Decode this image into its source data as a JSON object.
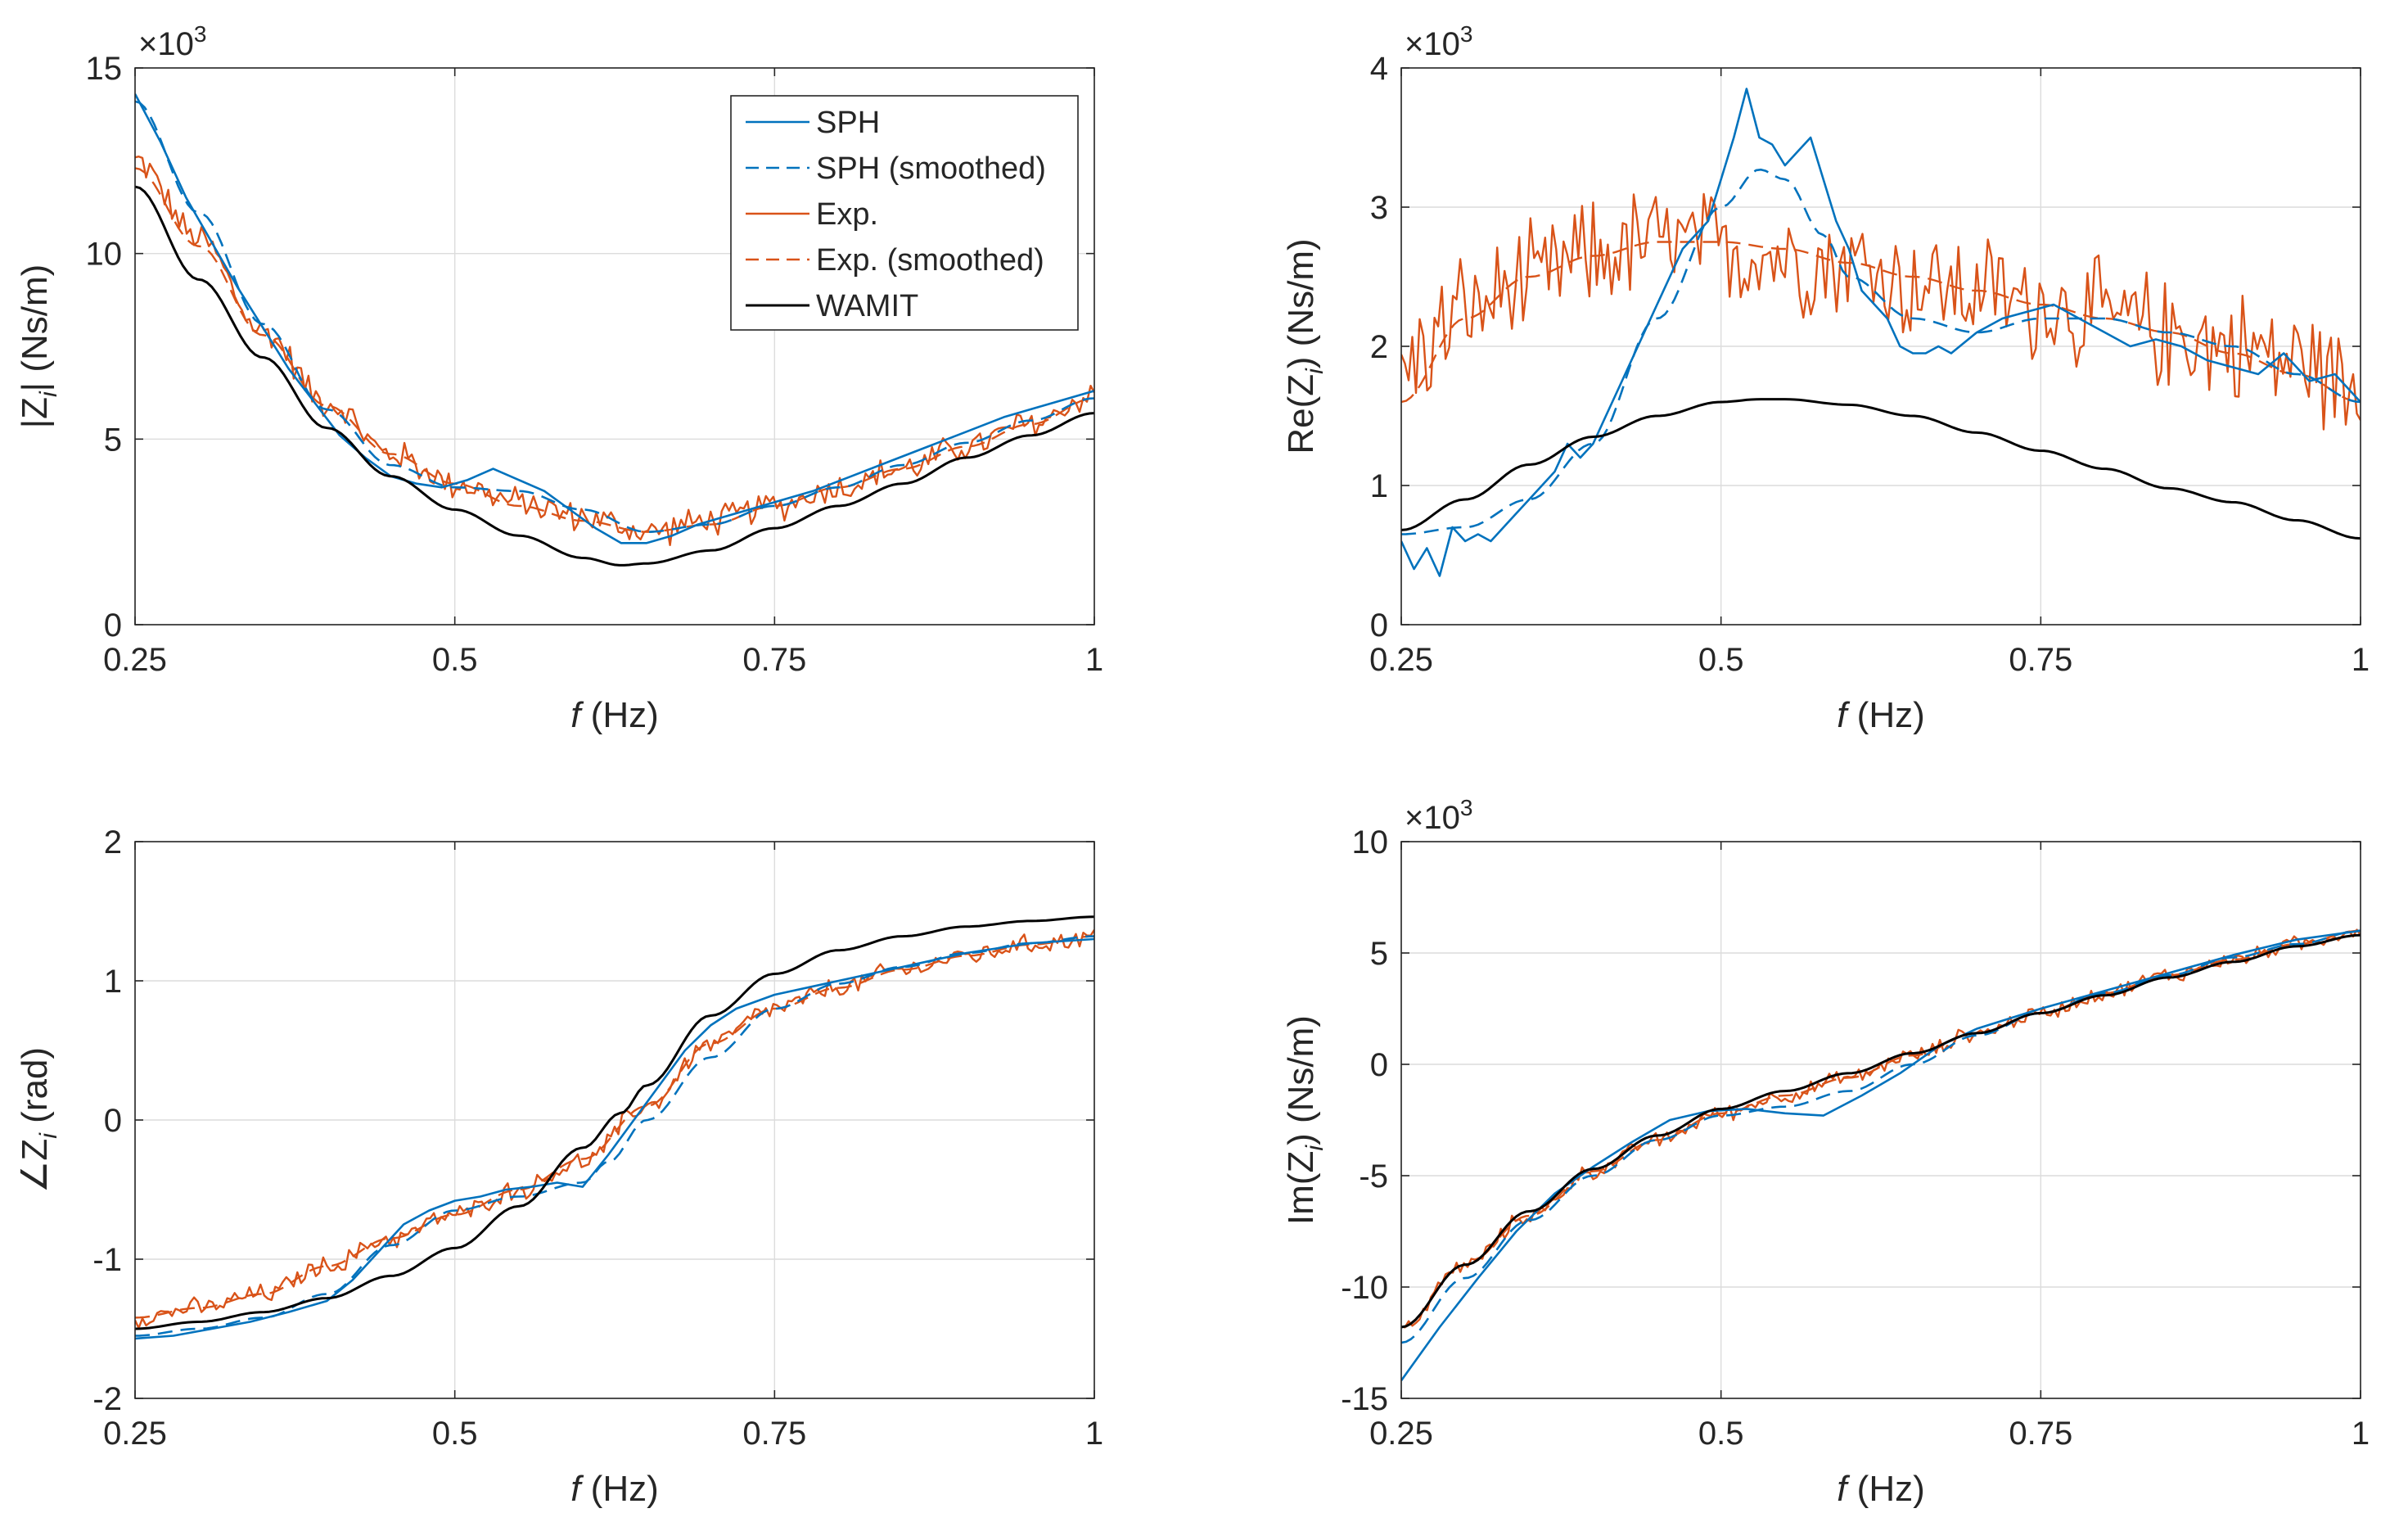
{
  "x_label_prefix": "f",
  "x_label_unit": " (Hz)",
  "exponent_base": "×10",
  "exponent_power": "3",
  "legend": [
    {
      "label": "SPH",
      "color": "#0072BD",
      "dash": "solid"
    },
    {
      "label": "SPH (smoothed)",
      "color": "#0072BD",
      "dash": "dashed"
    },
    {
      "label": "Exp.",
      "color": "#D95319",
      "dash": "solid"
    },
    {
      "label": "Exp. (smoothed)",
      "color": "#D95319",
      "dash": "dashed"
    },
    {
      "label": "WAMIT",
      "color": "#000000",
      "dash": "solid"
    }
  ],
  "colors": {
    "sph": "#0072BD",
    "exp": "#D95319",
    "wamit": "#000000",
    "grid": "#dcdcdc",
    "axis": "#262626"
  },
  "chart_data": [
    {
      "id": "abs",
      "type": "line",
      "ylabel_main": "|Z",
      "ylabel_sub": "i",
      "ylabel_tail": "|   (Ns/m)",
      "xlim": [
        0.25,
        1
      ],
      "ylim": [
        0,
        15
      ],
      "xticks": [
        0.25,
        0.5,
        0.75,
        1
      ],
      "xtick_labels": [
        "0.25",
        "0.5",
        "0.75",
        "1"
      ],
      "yticks": [
        0,
        5,
        10,
        15
      ],
      "ytick_labels": [
        "0",
        "5",
        "10",
        "15"
      ],
      "exponent": true,
      "legend_position": "top-right",
      "series": [
        {
          "name": "SPH",
          "x": [
            0.25,
            0.27,
            0.29,
            0.31,
            0.33,
            0.35,
            0.37,
            0.39,
            0.41,
            0.43,
            0.45,
            0.47,
            0.49,
            0.51,
            0.53,
            0.55,
            0.57,
            0.59,
            0.61,
            0.63,
            0.65,
            0.67,
            0.69,
            0.71,
            0.73,
            0.75,
            0.78,
            0.81,
            0.84,
            0.87,
            0.9,
            0.93,
            0.96,
            1.0
          ],
          "y": [
            14.3,
            13.0,
            11.5,
            10.3,
            9.1,
            8.0,
            6.9,
            6.0,
            5.1,
            4.5,
            4.0,
            3.8,
            3.7,
            3.9,
            4.2,
            3.9,
            3.6,
            3.1,
            2.6,
            2.2,
            2.2,
            2.4,
            2.7,
            2.9,
            3.1,
            3.3,
            3.6,
            4.0,
            4.4,
            4.8,
            5.2,
            5.6,
            5.9,
            6.3
          ]
        },
        {
          "name": "SPH (smoothed)",
          "x": [
            0.25,
            0.3,
            0.35,
            0.4,
            0.45,
            0.5,
            0.55,
            0.6,
            0.65,
            0.7,
            0.75,
            0.8,
            0.85,
            0.9,
            0.95,
            1.0
          ],
          "y": [
            14.1,
            11.1,
            8.1,
            5.8,
            4.3,
            3.7,
            3.6,
            3.1,
            2.5,
            2.7,
            3.2,
            3.7,
            4.3,
            4.9,
            5.5,
            6.1
          ]
        },
        {
          "name": "Exp.",
          "x": [
            0.25,
            0.3,
            0.35,
            0.4,
            0.45,
            0.5,
            0.55,
            0.6,
            0.65,
            0.7,
            0.75,
            0.8,
            0.85,
            0.9,
            0.95,
            1.0
          ],
          "y": [
            12.5,
            10.4,
            7.9,
            6.0,
            4.6,
            3.8,
            3.3,
            2.9,
            2.5,
            2.8,
            3.2,
            3.7,
            4.2,
            4.8,
            5.4,
            6.2
          ],
          "noise": 0.35
        },
        {
          "name": "Exp. (smoothed)",
          "x": [
            0.25,
            0.3,
            0.35,
            0.4,
            0.45,
            0.5,
            0.55,
            0.6,
            0.65,
            0.7,
            0.75,
            0.8,
            0.85,
            0.9,
            0.95,
            1.0
          ],
          "y": [
            12.3,
            10.2,
            7.8,
            5.9,
            4.6,
            3.8,
            3.2,
            2.8,
            2.5,
            2.7,
            3.2,
            3.7,
            4.2,
            4.8,
            5.4,
            6.1
          ]
        },
        {
          "name": "WAMIT",
          "x": [
            0.25,
            0.3,
            0.35,
            0.4,
            0.45,
            0.5,
            0.55,
            0.6,
            0.63,
            0.65,
            0.7,
            0.75,
            0.8,
            0.85,
            0.9,
            0.95,
            1.0
          ],
          "y": [
            11.8,
            9.3,
            7.2,
            5.3,
            4.0,
            3.1,
            2.4,
            1.8,
            1.6,
            1.65,
            2.0,
            2.6,
            3.2,
            3.8,
            4.5,
            5.1,
            5.7
          ]
        }
      ]
    },
    {
      "id": "re",
      "type": "line",
      "ylabel_main": "Re(Z",
      "ylabel_sub": "i",
      "ylabel_tail": ")   (Ns/m)",
      "xlim": [
        0.25,
        1
      ],
      "ylim": [
        0,
        4
      ],
      "xticks": [
        0.25,
        0.5,
        0.75,
        1
      ],
      "xtick_labels": [
        "0.25",
        "0.5",
        "0.75",
        "1"
      ],
      "yticks": [
        0,
        1,
        2,
        3,
        4
      ],
      "ytick_labels": [
        "0",
        "1",
        "2",
        "3",
        "4"
      ],
      "exponent": true,
      "series": [
        {
          "name": "SPH",
          "x": [
            0.25,
            0.26,
            0.27,
            0.28,
            0.29,
            0.3,
            0.31,
            0.32,
            0.33,
            0.34,
            0.35,
            0.36,
            0.37,
            0.38,
            0.39,
            0.4,
            0.41,
            0.42,
            0.43,
            0.44,
            0.45,
            0.46,
            0.47,
            0.48,
            0.49,
            0.5,
            0.51,
            0.52,
            0.53,
            0.54,
            0.55,
            0.56,
            0.57,
            0.58,
            0.59,
            0.6,
            0.61,
            0.62,
            0.63,
            0.64,
            0.65,
            0.66,
            0.67,
            0.68,
            0.7,
            0.72,
            0.74,
            0.76,
            0.78,
            0.8,
            0.82,
            0.84,
            0.86,
            0.88,
            0.9,
            0.92,
            0.94,
            0.96,
            0.98,
            1.0
          ],
          "y": [
            0.6,
            0.4,
            0.55,
            0.35,
            0.7,
            0.6,
            0.65,
            0.6,
            0.7,
            0.8,
            0.9,
            1.0,
            1.1,
            1.3,
            1.2,
            1.3,
            1.5,
            1.7,
            1.9,
            2.1,
            2.3,
            2.5,
            2.7,
            2.8,
            2.9,
            3.2,
            3.5,
            3.85,
            3.5,
            3.45,
            3.3,
            3.4,
            3.5,
            3.2,
            2.9,
            2.7,
            2.4,
            2.3,
            2.2,
            2.0,
            1.95,
            1.95,
            2.0,
            1.95,
            2.1,
            2.2,
            2.25,
            2.3,
            2.2,
            2.1,
            2.0,
            2.05,
            2.0,
            1.9,
            1.85,
            1.8,
            1.95,
            1.75,
            1.8,
            1.6
          ]
        },
        {
          "name": "SPH (smoothed)",
          "x": [
            0.25,
            0.3,
            0.35,
            0.4,
            0.45,
            0.5,
            0.53,
            0.55,
            0.58,
            0.6,
            0.65,
            0.7,
            0.75,
            0.8,
            0.85,
            0.9,
            0.95,
            1.0
          ],
          "y": [
            0.65,
            0.7,
            0.9,
            1.3,
            2.2,
            3.0,
            3.27,
            3.2,
            2.8,
            2.5,
            2.2,
            2.1,
            2.2,
            2.2,
            2.1,
            2.0,
            1.8,
            1.6
          ]
        },
        {
          "name": "Exp.",
          "x": [
            0.25,
            0.3,
            0.35,
            0.4,
            0.45,
            0.5,
            0.55,
            0.6,
            0.65,
            0.7,
            0.75,
            0.8,
            0.85,
            0.9,
            0.95,
            1.0
          ],
          "y": [
            1.85,
            2.25,
            2.45,
            2.65,
            2.75,
            2.7,
            2.65,
            2.6,
            2.45,
            2.4,
            2.3,
            2.2,
            2.1,
            2.0,
            1.9,
            1.7
          ],
          "noise": 0.35
        },
        {
          "name": "Exp. (smoothed)",
          "x": [
            0.25,
            0.3,
            0.35,
            0.4,
            0.45,
            0.5,
            0.55,
            0.6,
            0.65,
            0.7,
            0.75,
            0.8,
            0.85,
            0.9,
            0.95,
            1.0
          ],
          "y": [
            1.6,
            2.2,
            2.5,
            2.65,
            2.75,
            2.75,
            2.7,
            2.6,
            2.5,
            2.4,
            2.3,
            2.2,
            2.1,
            1.95,
            1.8,
            1.6
          ]
        },
        {
          "name": "WAMIT",
          "x": [
            0.25,
            0.3,
            0.35,
            0.4,
            0.45,
            0.5,
            0.53,
            0.55,
            0.6,
            0.65,
            0.7,
            0.75,
            0.8,
            0.85,
            0.9,
            0.95,
            1.0
          ],
          "y": [
            0.68,
            0.9,
            1.15,
            1.35,
            1.5,
            1.6,
            1.62,
            1.62,
            1.58,
            1.5,
            1.38,
            1.25,
            1.12,
            0.98,
            0.88,
            0.75,
            0.62
          ]
        }
      ]
    },
    {
      "id": "phase",
      "type": "line",
      "ylabel_main": "∠Z",
      "ylabel_sub": "i",
      "ylabel_tail": "   (rad)",
      "xlim": [
        0.25,
        1
      ],
      "ylim": [
        -2,
        2
      ],
      "xticks": [
        0.25,
        0.5,
        0.75,
        1
      ],
      "xtick_labels": [
        "0.25",
        "0.5",
        "0.75",
        "1"
      ],
      "yticks": [
        -2,
        -1,
        0,
        1,
        2
      ],
      "ytick_labels": [
        "-2",
        "-1",
        "0",
        "1",
        "2"
      ],
      "exponent": false,
      "series": [
        {
          "name": "SPH",
          "x": [
            0.25,
            0.28,
            0.31,
            0.34,
            0.37,
            0.4,
            0.42,
            0.44,
            0.46,
            0.48,
            0.5,
            0.52,
            0.54,
            0.56,
            0.58,
            0.6,
            0.62,
            0.64,
            0.66,
            0.68,
            0.7,
            0.72,
            0.75,
            0.8,
            0.85,
            0.9,
            0.95,
            1.0
          ],
          "y": [
            -1.57,
            -1.55,
            -1.5,
            -1.45,
            -1.38,
            -1.3,
            -1.15,
            -0.95,
            -0.75,
            -0.65,
            -0.58,
            -0.55,
            -0.5,
            -0.48,
            -0.45,
            -0.48,
            -0.25,
            0.0,
            0.25,
            0.5,
            0.68,
            0.8,
            0.9,
            1.0,
            1.1,
            1.2,
            1.27,
            1.3
          ]
        },
        {
          "name": "SPH (smoothed)",
          "x": [
            0.25,
            0.3,
            0.35,
            0.4,
            0.45,
            0.5,
            0.55,
            0.6,
            0.62,
            0.65,
            0.7,
            0.75,
            0.8,
            0.85,
            0.9,
            0.95,
            1.0
          ],
          "y": [
            -1.55,
            -1.5,
            -1.42,
            -1.25,
            -0.9,
            -0.65,
            -0.55,
            -0.45,
            -0.3,
            0.0,
            0.45,
            0.8,
            0.98,
            1.1,
            1.2,
            1.27,
            1.32
          ]
        },
        {
          "name": "Exp.",
          "x": [
            0.25,
            0.3,
            0.35,
            0.4,
            0.45,
            0.5,
            0.55,
            0.6,
            0.65,
            0.7,
            0.75,
            0.8,
            0.85,
            0.9,
            0.95,
            1.0
          ],
          "y": [
            -1.42,
            -1.35,
            -1.25,
            -1.05,
            -0.85,
            -0.68,
            -0.5,
            -0.3,
            0.1,
            0.55,
            0.8,
            0.95,
            1.08,
            1.18,
            1.26,
            1.32
          ],
          "noise": 0.06
        },
        {
          "name": "Exp. (smoothed)",
          "x": [
            0.25,
            0.3,
            0.35,
            0.4,
            0.45,
            0.5,
            0.55,
            0.6,
            0.65,
            0.7,
            0.75,
            0.8,
            0.85,
            0.9,
            0.95,
            1.0
          ],
          "y": [
            -1.42,
            -1.35,
            -1.25,
            -1.05,
            -0.85,
            -0.68,
            -0.5,
            -0.28,
            0.1,
            0.55,
            0.8,
            0.95,
            1.08,
            1.18,
            1.26,
            1.32
          ]
        },
        {
          "name": "WAMIT",
          "x": [
            0.25,
            0.3,
            0.35,
            0.4,
            0.45,
            0.5,
            0.55,
            0.6,
            0.63,
            0.65,
            0.7,
            0.75,
            0.8,
            0.85,
            0.9,
            0.95,
            1.0
          ],
          "y": [
            -1.5,
            -1.45,
            -1.38,
            -1.28,
            -1.12,
            -0.92,
            -0.62,
            -0.2,
            0.05,
            0.25,
            0.75,
            1.05,
            1.22,
            1.32,
            1.39,
            1.43,
            1.46
          ]
        }
      ]
    },
    {
      "id": "im",
      "type": "line",
      "ylabel_main": "Im(Z",
      "ylabel_sub": "i",
      "ylabel_tail": ")   (Ns/m)",
      "xlim": [
        0.25,
        1
      ],
      "ylim": [
        -15,
        10
      ],
      "xticks": [
        0.25,
        0.5,
        0.75,
        1
      ],
      "xtick_labels": [
        "0.25",
        "0.5",
        "0.75",
        "1"
      ],
      "yticks": [
        -15,
        -10,
        -5,
        0,
        5,
        10
      ],
      "ytick_labels": [
        "-15",
        "-10",
        "-5",
        "0",
        "5",
        "10"
      ],
      "exponent": true,
      "series": [
        {
          "name": "SPH",
          "x": [
            0.25,
            0.28,
            0.31,
            0.34,
            0.37,
            0.4,
            0.43,
            0.46,
            0.49,
            0.52,
            0.55,
            0.58,
            0.61,
            0.64,
            0.67,
            0.7,
            0.75,
            0.8,
            0.85,
            0.9,
            0.95,
            1.0
          ],
          "y": [
            -14.2,
            -11.8,
            -9.6,
            -7.5,
            -5.8,
            -4.6,
            -3.5,
            -2.5,
            -2.1,
            -2.0,
            -2.2,
            -2.3,
            -1.4,
            -0.4,
            0.8,
            1.6,
            2.5,
            3.3,
            4.1,
            4.9,
            5.6,
            6.0
          ]
        },
        {
          "name": "SPH (smoothed)",
          "x": [
            0.25,
            0.3,
            0.35,
            0.4,
            0.45,
            0.5,
            0.55,
            0.6,
            0.65,
            0.7,
            0.75,
            0.8,
            0.85,
            0.9,
            0.95,
            1.0
          ],
          "y": [
            -12.5,
            -9.6,
            -7.0,
            -5.0,
            -3.4,
            -2.3,
            -1.9,
            -1.2,
            0.0,
            1.3,
            2.3,
            3.2,
            4.0,
            4.8,
            5.4,
            6.0
          ]
        },
        {
          "name": "Exp.",
          "x": [
            0.25,
            0.3,
            0.35,
            0.4,
            0.45,
            0.5,
            0.55,
            0.6,
            0.65,
            0.7,
            0.75,
            0.8,
            0.85,
            0.9,
            0.95,
            1.0
          ],
          "y": [
            -11.8,
            -9.0,
            -6.8,
            -4.8,
            -3.4,
            -2.2,
            -1.4,
            -0.6,
            0.4,
            1.4,
            2.3,
            3.2,
            4.0,
            4.7,
            5.4,
            6.0
          ],
          "noise": 0.3
        },
        {
          "name": "Exp. (smoothed)",
          "x": [
            0.25,
            0.3,
            0.35,
            0.4,
            0.45,
            0.5,
            0.55,
            0.6,
            0.65,
            0.7,
            0.75,
            0.8,
            0.85,
            0.9,
            0.95,
            1.0
          ],
          "y": [
            -11.8,
            -9.0,
            -6.8,
            -4.8,
            -3.4,
            -2.2,
            -1.4,
            -0.6,
            0.4,
            1.4,
            2.3,
            3.2,
            4.0,
            4.7,
            5.4,
            6.0
          ]
        },
        {
          "name": "WAMIT",
          "x": [
            0.25,
            0.3,
            0.35,
            0.4,
            0.45,
            0.5,
            0.55,
            0.6,
            0.65,
            0.7,
            0.75,
            0.8,
            0.85,
            0.9,
            0.95,
            1.0
          ],
          "y": [
            -11.8,
            -9.0,
            -6.6,
            -4.7,
            -3.2,
            -2.0,
            -1.2,
            -0.4,
            0.5,
            1.4,
            2.3,
            3.1,
            3.9,
            4.6,
            5.3,
            5.8
          ]
        }
      ]
    }
  ]
}
